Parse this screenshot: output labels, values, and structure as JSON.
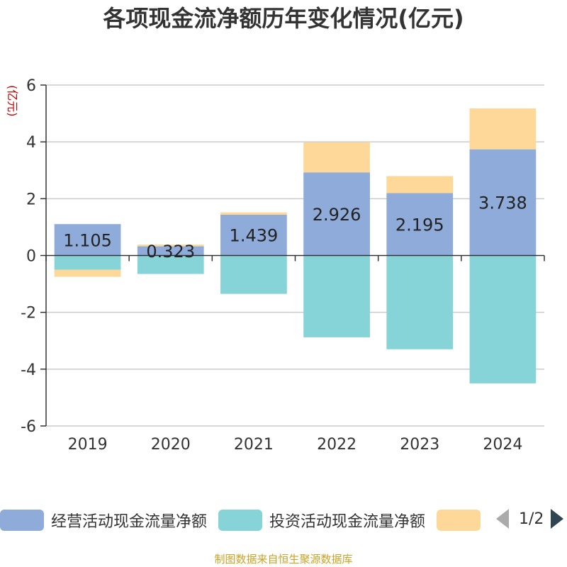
{
  "chart_data": {
    "type": "bar",
    "stacked": true,
    "title": "各项现金流净额历年变化情况(亿元)",
    "ylabel": "(亿元)",
    "xlabel": "",
    "categories": [
      "2019",
      "2020",
      "2021",
      "2022",
      "2023",
      "2024"
    ],
    "ylim": [
      -6,
      6
    ],
    "yticks": [
      6,
      4,
      2,
      0,
      -2,
      -4,
      -6
    ],
    "series": [
      {
        "name": "经营活动现金流量净额",
        "color": "#8eabd9",
        "values": [
          1.105,
          0.323,
          1.439,
          2.926,
          2.195,
          3.738
        ],
        "labels": [
          "1.105",
          "0.323",
          "1.439",
          "2.926",
          "2.195",
          "3.738"
        ]
      },
      {
        "name": "投资活动现金流量净额",
        "color": "#86d4d8",
        "values": [
          -0.5,
          -0.65,
          -1.35,
          -2.88,
          -3.3,
          -4.5
        ]
      },
      {
        "name": "",
        "color": "#fdd899",
        "values": [
          -0.25,
          0.06,
          0.08,
          1.06,
          0.6,
          1.44
        ]
      }
    ]
  },
  "legend": {
    "page": "1/2"
  },
  "source": "制图数据来自恒生聚源数据库"
}
